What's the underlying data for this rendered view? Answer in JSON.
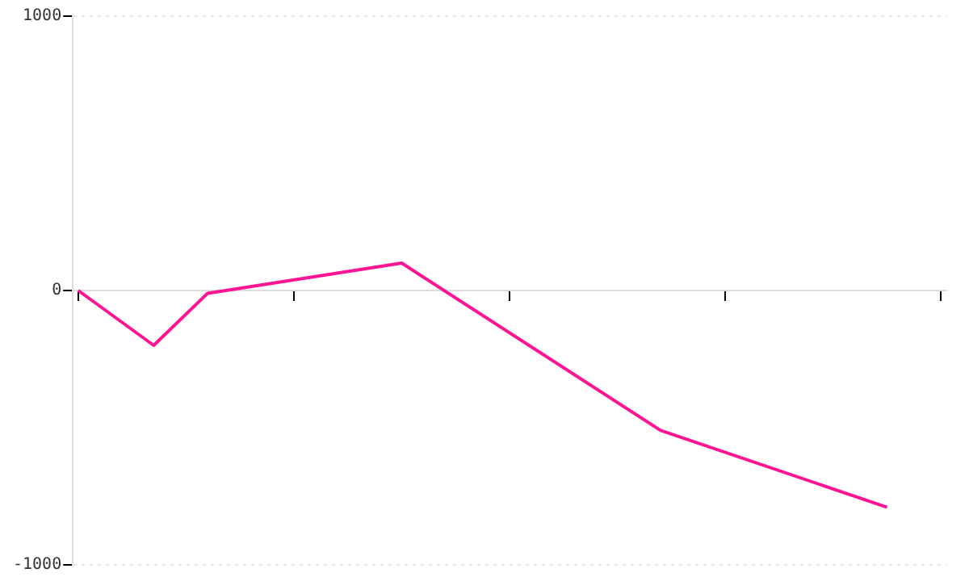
{
  "chart_data": {
    "type": "line",
    "categories": [
      null,
      null,
      null,
      null,
      null,
      null,
      null,
      null,
      null,
      null,
      null,
      null,
      null,
      null,
      null,
      null,
      null,
      null,
      null,
      null,
      null,
      null,
      null,
      null,
      null,
      null,
      null,
      null,
      null,
      null,
      null,
      null,
      null,
      null,
      null,
      null,
      null,
      null,
      null,
      null,
      null,
      null,
      null,
      null,
      null,
      null,
      null,
      null,
      null,
      null,
      null,
      null,
      null,
      null,
      null,
      null,
      null,
      null,
      null,
      null,
      null,
      null,
      null,
      null,
      null,
      null,
      null,
      null,
      null,
      null,
      null,
      null,
      null,
      null,
      null,
      null,
      null,
      null,
      null,
      null,
      null
    ],
    "series": [
      {
        "color": "#ff1493",
        "values": [
          0,
          null,
          null,
          null,
          null,
          null,
          null,
          -200,
          null,
          null,
          null,
          null,
          -10,
          null,
          null,
          null,
          null,
          null,
          null,
          null,
          null,
          null,
          null,
          null,
          null,
          null,
          null,
          null,
          null,
          null,
          100,
          null,
          null,
          null,
          null,
          null,
          null,
          null,
          null,
          null,
          null,
          null,
          null,
          null,
          null,
          null,
          null,
          null,
          null,
          null,
          null,
          null,
          null,
          null,
          -510,
          null,
          null,
          null,
          null,
          null,
          null,
          null,
          null,
          null,
          null,
          null,
          null,
          null,
          null,
          null,
          null,
          null,
          null,
          null,
          null,
          -790,
          null,
          null,
          null,
          null,
          null
        ]
      }
    ],
    "ylim": [
      -1000,
      1000
    ],
    "yticks": [
      -1000,
      0,
      1000
    ],
    "tick_labels": "y",
    "grid": "y",
    "legend": false,
    "marker": "none",
    "line_style": "solid"
  }
}
